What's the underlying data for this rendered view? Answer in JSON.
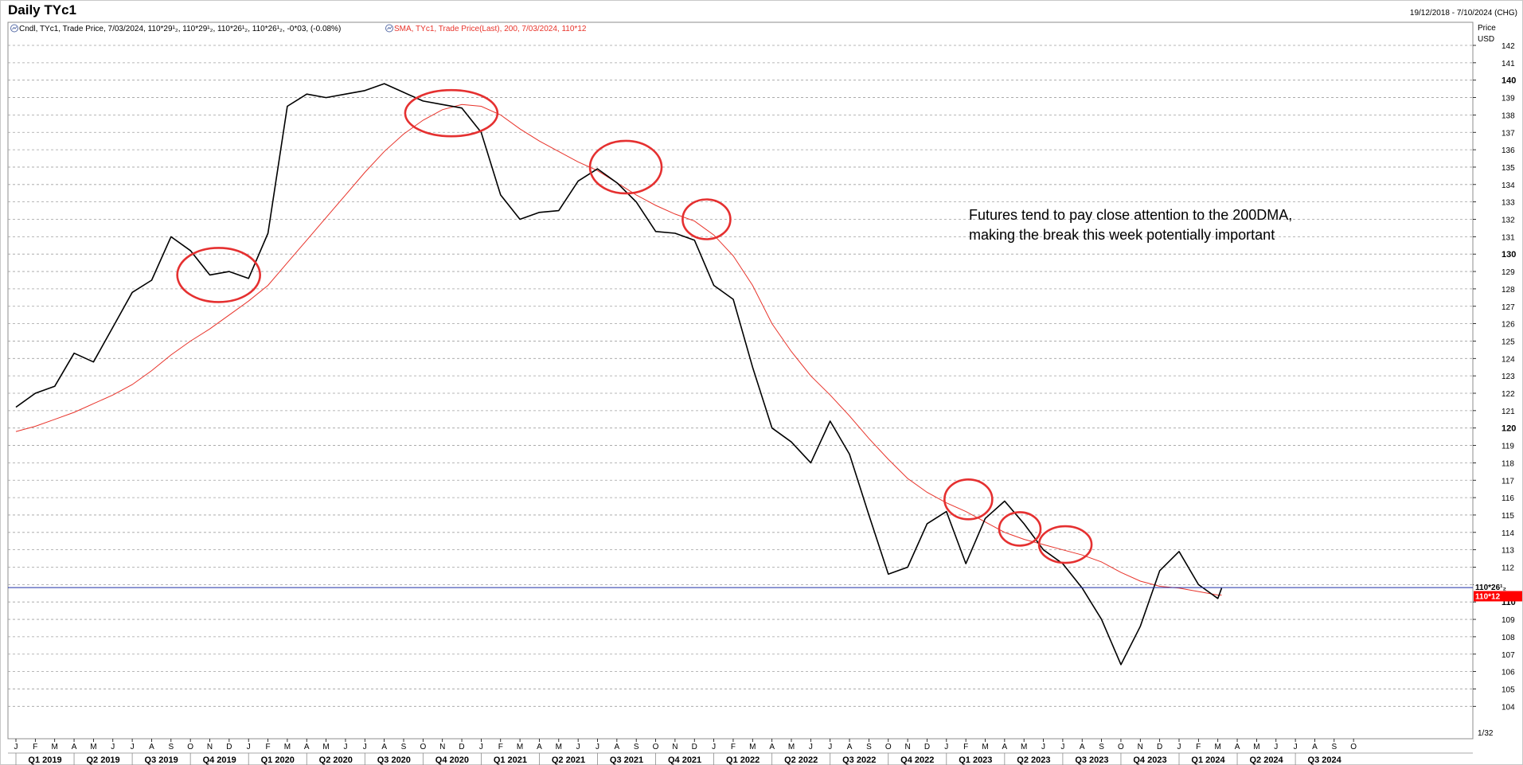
{
  "header": {
    "title": "Daily TYc1",
    "date_range": "19/12/2018 - 7/10/2024 (CHG)"
  },
  "legend": {
    "candle_icon": "chart-icon",
    "candle_text": "Cndl, TYc1, Trade Price, 7/03/2024, 110*29¹₂, 110*29¹₂, 110*26¹₂, 110*26¹₂, -0*03, (-0.08%)",
    "sma_icon": "chart-icon",
    "sma_text": "SMA, TYc1, Trade Price(Last),  200, 7/03/2024, 110*12"
  },
  "axis": {
    "price_label": "Price",
    "currency_label": "USD",
    "unit_label": "1/32"
  },
  "annotation": {
    "line1": "Futures tend to pay close attention to the 200DMA,",
    "line2": "making the break this week potentially important"
  },
  "tags": {
    "last_price": "110*26¹₂",
    "sma_price": "110*12"
  },
  "colors": {
    "price": "#000000",
    "sma": "#e8332a",
    "last_line": "#1f2fa8",
    "sma_tag_bg": "#ff0000",
    "circle": "#e53030",
    "grid": "#a0a0a0"
  },
  "chart_data": {
    "type": "line",
    "title": "Daily TYc1",
    "ylim": [
      103,
      143
    ],
    "yticks": [
      104,
      105,
      106,
      107,
      108,
      109,
      110,
      111,
      112,
      113,
      114,
      115,
      116,
      117,
      118,
      119,
      120,
      121,
      122,
      123,
      124,
      125,
      126,
      127,
      128,
      129,
      130,
      131,
      132,
      133,
      134,
      135,
      136,
      137,
      138,
      139,
      140,
      141,
      142
    ],
    "ytick_labels": [
      "104",
      "105",
      "106",
      "107",
      "108",
      "109",
      "110",
      "111",
      "112",
      "113",
      "114",
      "115",
      "116",
      "117",
      "118",
      "119",
      "120",
      "121",
      "122",
      "123",
      "124",
      "125",
      "126",
      "127",
      "128",
      "129",
      "130",
      "131",
      "132",
      "133",
      "134",
      "135",
      "136",
      "137",
      "138",
      "139",
      "140",
      "141",
      "142"
    ],
    "bold_ticks": [
      110,
      120,
      130,
      140
    ],
    "grid": true,
    "x": [
      "2019-01-01",
      "2019-02-01",
      "2019-03-01",
      "2019-04-01",
      "2019-05-01",
      "2019-06-01",
      "2019-07-01",
      "2019-08-01",
      "2019-09-01",
      "2019-10-01",
      "2019-11-01",
      "2019-12-01",
      "2020-01-01",
      "2020-02-01",
      "2020-03-01",
      "2020-04-01",
      "2020-05-01",
      "2020-06-01",
      "2020-07-01",
      "2020-08-01",
      "2020-09-01",
      "2020-10-01",
      "2020-11-01",
      "2020-12-01",
      "2021-01-01",
      "2021-02-01",
      "2021-03-01",
      "2021-04-01",
      "2021-05-01",
      "2021-06-01",
      "2021-07-01",
      "2021-08-01",
      "2021-09-01",
      "2021-10-01",
      "2021-11-01",
      "2021-12-01",
      "2022-01-01",
      "2022-02-01",
      "2022-03-01",
      "2022-04-01",
      "2022-05-01",
      "2022-06-01",
      "2022-07-01",
      "2022-08-01",
      "2022-09-01",
      "2022-10-01",
      "2022-11-01",
      "2022-12-01",
      "2023-01-01",
      "2023-02-01",
      "2023-03-01",
      "2023-04-01",
      "2023-05-01",
      "2023-06-01",
      "2023-07-01",
      "2023-08-01",
      "2023-09-01",
      "2023-10-01",
      "2023-11-01",
      "2023-12-01",
      "2024-01-01",
      "2024-02-01",
      "2024-03-01",
      "2024-03-07"
    ],
    "series": [
      {
        "values": [
          121.2,
          122.0,
          122.4,
          124.3,
          123.8,
          125.8,
          127.8,
          128.5,
          131.0,
          130.2,
          128.8,
          129.0,
          128.6,
          131.2,
          138.5,
          139.2,
          139.0,
          139.2,
          139.4,
          139.8,
          139.3,
          138.8,
          138.6,
          138.4,
          137.0,
          133.4,
          132.0,
          132.4,
          132.5,
          134.2,
          134.9,
          134.1,
          133.0,
          131.3,
          131.2,
          130.8,
          128.2,
          127.4,
          123.5,
          120.0,
          119.2,
          118.0,
          120.4,
          118.5,
          115.0,
          111.6,
          112.0,
          114.5,
          115.2,
          112.2,
          114.8,
          115.8,
          114.5,
          113.0,
          112.2,
          110.8,
          109.0,
          106.4,
          108.6,
          111.8,
          112.9,
          111.0,
          110.2,
          110.8
        ]
      },
      {
        "name": "SMA",
        "values": [
          119.8,
          120.1,
          120.5,
          120.9,
          121.4,
          121.9,
          122.5,
          123.3,
          124.2,
          125.0,
          125.7,
          126.5,
          127.3,
          128.2,
          129.5,
          130.8,
          132.1,
          133.4,
          134.7,
          135.9,
          136.9,
          137.7,
          138.3,
          138.6,
          138.5,
          138.0,
          137.2,
          136.5,
          135.9,
          135.3,
          134.8,
          134.1,
          133.4,
          132.8,
          132.3,
          131.9,
          131.1,
          129.9,
          128.2,
          126.0,
          124.4,
          123.0,
          121.9,
          120.7,
          119.4,
          118.2,
          117.1,
          116.3,
          115.7,
          115.2,
          114.6,
          114.0,
          113.6,
          113.3,
          113.0,
          112.7,
          112.3,
          111.7,
          111.2,
          110.9,
          110.8,
          110.6,
          110.4,
          110.4
        ]
      }
    ],
    "last_value": 110.83,
    "months": [
      "J",
      "F",
      "M",
      "A",
      "M",
      "J",
      "J",
      "A",
      "S",
      "O",
      "N",
      "D",
      "J",
      "F",
      "M",
      "A",
      "M",
      "J",
      "J",
      "A",
      "S",
      "O",
      "N",
      "D",
      "J",
      "F",
      "M",
      "A",
      "M",
      "J",
      "J",
      "A",
      "S",
      "O",
      "N",
      "D",
      "J",
      "F",
      "M",
      "A",
      "M",
      "J",
      "J",
      "A",
      "S",
      "O",
      "N",
      "D",
      "J",
      "F",
      "M",
      "A",
      "M",
      "J",
      "J",
      "A",
      "S",
      "O",
      "N",
      "D",
      "J",
      "F",
      "M",
      "A",
      "M",
      "J",
      "J",
      "A",
      "S",
      "O"
    ],
    "quarters": [
      "Q1 2019",
      "Q2 2019",
      "Q3 2019",
      "Q4 2019",
      "Q1 2020",
      "Q2 2020",
      "Q3 2020",
      "Q4 2020",
      "Q1 2021",
      "Q2 2021",
      "Q3 2021",
      "Q4 2021",
      "Q1 2022",
      "Q2 2022",
      "Q3 2022",
      "Q4 2022",
      "Q1 2023",
      "Q2 2023",
      "Q3 2023",
      "Q4 2023",
      "Q1 2024",
      "Q2 2024",
      "Q3 2024"
    ],
    "highlight_circles": [
      {
        "date": "2019-11-15",
        "price": 128.8
      },
      {
        "date": "2020-11-15",
        "price": 138.1
      },
      {
        "date": "2021-08-15",
        "price": 135.0
      },
      {
        "date": "2021-12-20",
        "price": 132.0
      },
      {
        "date": "2023-02-05",
        "price": 115.9
      },
      {
        "date": "2023-04-25",
        "price": 114.2
      },
      {
        "date": "2023-07-05",
        "price": 113.3
      }
    ]
  }
}
